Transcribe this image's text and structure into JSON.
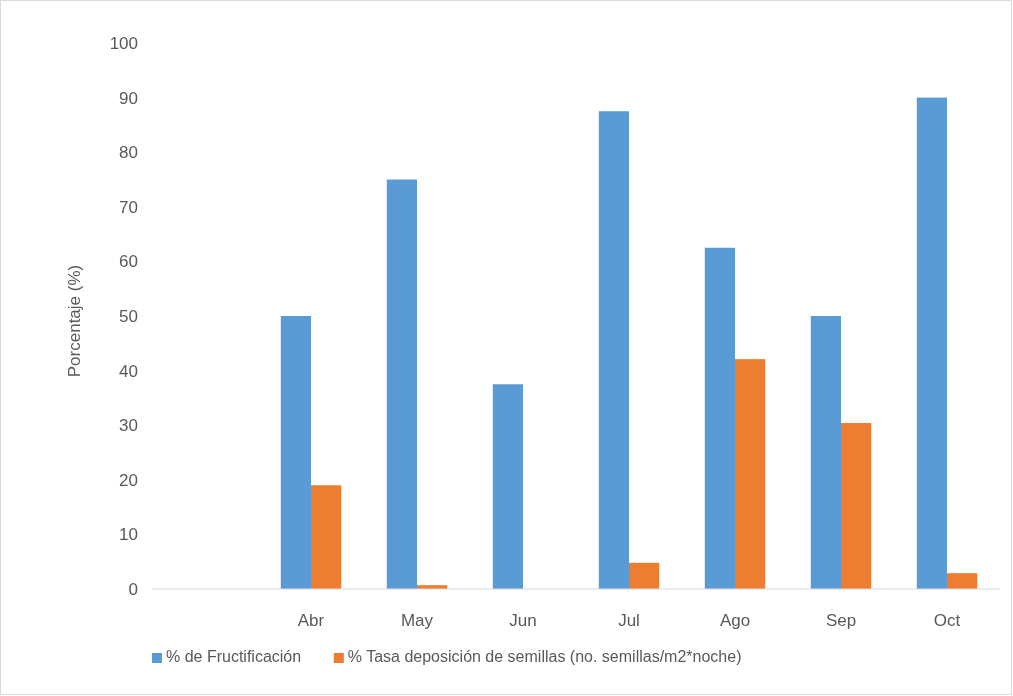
{
  "chart_data": {
    "type": "bar",
    "ylabel": "Porcentaje (%)",
    "categories": [
      null,
      "Abr",
      "May",
      "Jun",
      "Jul",
      "Ago",
      "Sep",
      "Oct"
    ],
    "series": [
      {
        "name": "% de Fructificación",
        "color": "#5b9bd5",
        "values": [
          null,
          50,
          75,
          37.5,
          87.5,
          62.5,
          50,
          90
        ]
      },
      {
        "name": "% Tasa deposición de semillas (no. semillas/m2*noche)",
        "color": "#ed7d31",
        "values": [
          null,
          19,
          0.7,
          0,
          4.8,
          42.1,
          30.4,
          2.9
        ]
      }
    ],
    "ylim": [
      0,
      100
    ],
    "yticks": [
      0,
      10,
      20,
      30,
      40,
      50,
      60,
      70,
      80,
      90,
      100
    ],
    "grid": false,
    "legend": "bottom"
  }
}
